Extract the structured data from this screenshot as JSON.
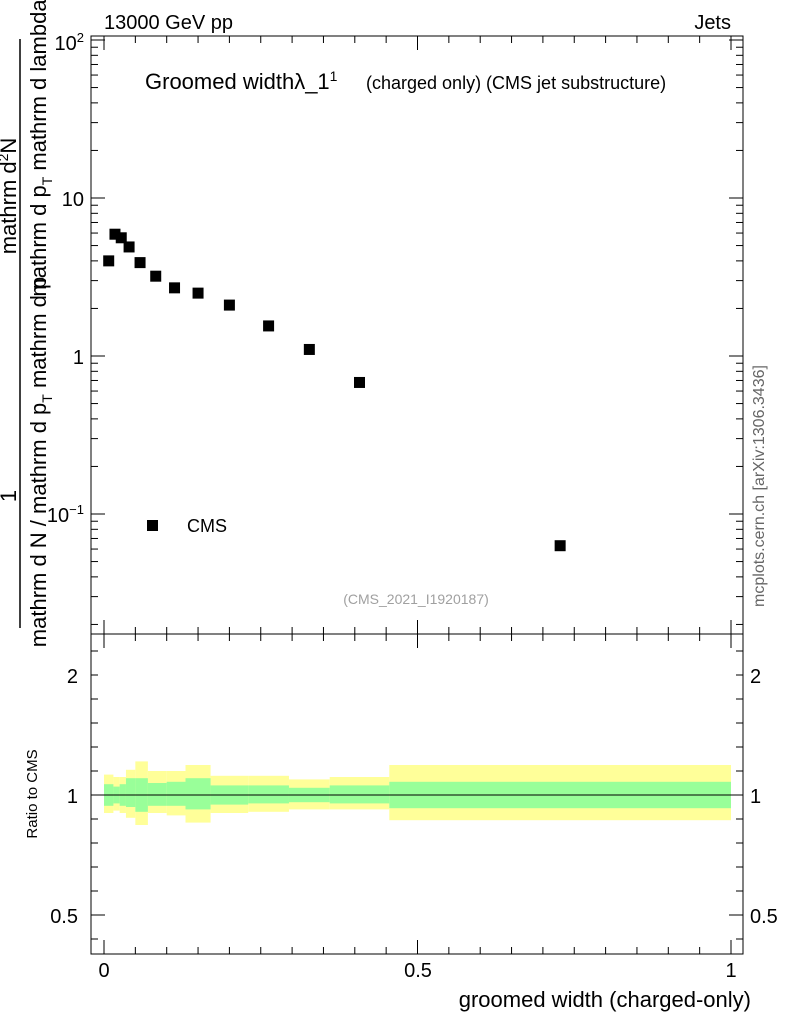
{
  "header": {
    "left": "13000 GeV pp",
    "right": "Jets"
  },
  "plot_title": {
    "main": "Groomed width",
    "lambda": "λ_1",
    "superscript": "1",
    "suffix": "(charged only) (CMS jet substructure)"
  },
  "watermark": "mcplots.cern.ch [arXiv:1306.3436]",
  "analysis_id": "(CMS_2021_I1920187)",
  "ylabel": {
    "numerator": "mathrm d²N",
    "numerator_sup": "2",
    "numerator_text": "mathrm d N",
    "one": "1",
    "den_part1": "mathrm d N / mathrm d p",
    "den_sub1": "T",
    "den_part2": "mathrm d p",
    "den_sub2": "T",
    "den_part3": "mathrm d lambda",
    "main_top_a": "mathrm d",
    "main_top_b": "N",
    "main_mid_a": "mathrm d p",
    "main_mid_b": "mathrm d lambda",
    "left_a": "mathrm d N",
    "left_b": "/ mathrm d p",
    "left_c": "mathrm d p"
  },
  "chart_data": [
    {
      "type": "scatter",
      "panel": "main",
      "yscale": "log",
      "ylim": [
        0.02,
        110
      ],
      "xlim": [
        -0.02,
        1.0
      ],
      "y_ticklabels": [
        "10^-1",
        "1",
        "10",
        "10^2"
      ],
      "series": [
        {
          "name": "CMS",
          "x": [
            0.0075,
            0.0175,
            0.0275,
            0.04,
            0.0575,
            0.0825,
            0.1125,
            0.15,
            0.2,
            0.2625,
            0.3275,
            0.4075,
            0.7275
          ],
          "y": [
            4.0,
            5.9,
            5.6,
            4.9,
            3.9,
            3.2,
            2.7,
            2.5,
            2.1,
            1.55,
            1.1,
            0.68,
            0.063
          ]
        }
      ],
      "legend": {
        "label": "CMS",
        "position": "bottom-left"
      }
    },
    {
      "type": "area",
      "panel": "ratio",
      "ylabel": "Ratio to CMS",
      "ylim": [
        0.25,
        2.35
      ],
      "y_ticklabels": [
        "0.5",
        "1",
        "2"
      ],
      "xlabel": "groomed width (charged-only)",
      "x_ticklabels": [
        "0",
        "0.5",
        "1"
      ],
      "bins": [
        {
          "lo": 0.0,
          "hi": 0.015,
          "stat": [
            0.955,
            1.045
          ],
          "total": [
            0.925,
            1.085
          ]
        },
        {
          "lo": 0.015,
          "hi": 0.025,
          "stat": [
            0.965,
            1.035
          ],
          "total": [
            0.935,
            1.075
          ]
        },
        {
          "lo": 0.025,
          "hi": 0.035,
          "stat": [
            0.955,
            1.045
          ],
          "total": [
            0.925,
            1.075
          ]
        },
        {
          "lo": 0.035,
          "hi": 0.05,
          "stat": [
            0.95,
            1.07
          ],
          "total": [
            0.905,
            1.105
          ]
        },
        {
          "lo": 0.05,
          "hi": 0.07,
          "stat": [
            0.93,
            1.07
          ],
          "total": [
            0.875,
            1.14
          ]
        },
        {
          "lo": 0.07,
          "hi": 0.1,
          "stat": [
            0.955,
            1.05
          ],
          "total": [
            0.925,
            1.1
          ]
        },
        {
          "lo": 0.1,
          "hi": 0.13,
          "stat": [
            0.955,
            1.055
          ],
          "total": [
            0.915,
            1.1
          ]
        },
        {
          "lo": 0.13,
          "hi": 0.17,
          "stat": [
            0.94,
            1.07
          ],
          "total": [
            0.885,
            1.125
          ]
        },
        {
          "lo": 0.17,
          "hi": 0.23,
          "stat": [
            0.96,
            1.04
          ],
          "total": [
            0.925,
            1.08
          ]
        },
        {
          "lo": 0.23,
          "hi": 0.295,
          "stat": [
            0.965,
            1.04
          ],
          "total": [
            0.93,
            1.08
          ]
        },
        {
          "lo": 0.295,
          "hi": 0.36,
          "stat": [
            0.97,
            1.03
          ],
          "total": [
            0.94,
            1.065
          ]
        },
        {
          "lo": 0.36,
          "hi": 0.455,
          "stat": [
            0.965,
            1.04
          ],
          "total": [
            0.94,
            1.075
          ]
        },
        {
          "lo": 0.455,
          "hi": 1.0,
          "stat": [
            0.945,
            1.055
          ],
          "total": [
            0.895,
            1.125
          ]
        }
      ],
      "colors": {
        "stat": "#99ff99",
        "total": "#ffff99",
        "ref_line": "#000000"
      }
    }
  ]
}
